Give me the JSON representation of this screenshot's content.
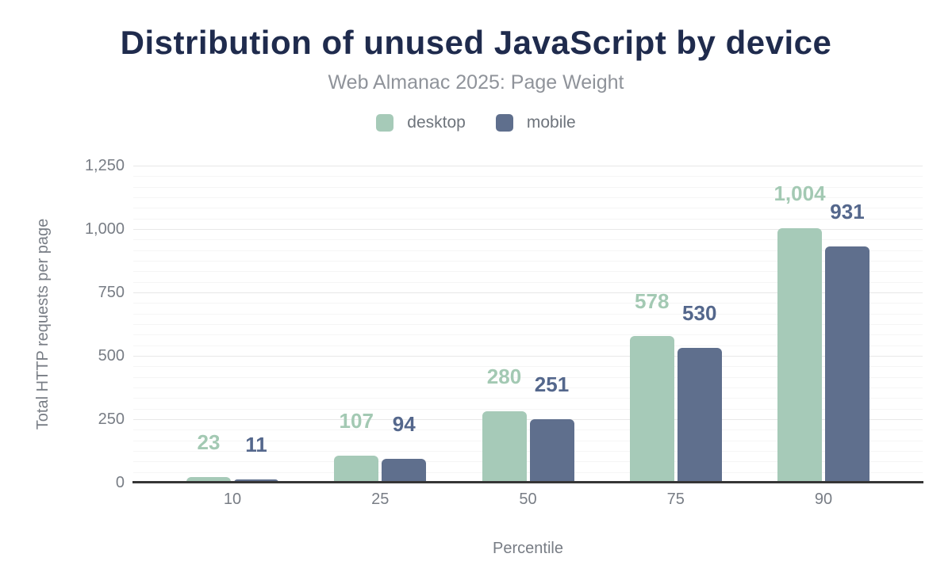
{
  "chart_data": {
    "type": "bar",
    "title": "Distribution of unused JavaScript by device",
    "subtitle": "Web Almanac 2025: Page Weight",
    "xlabel": "Percentile",
    "ylabel": "Total HTTP requests per page",
    "categories": [
      "10",
      "25",
      "50",
      "75",
      "90"
    ],
    "series": [
      {
        "name": "desktop",
        "color": "#a6cab8",
        "label_color": "#a3c9b3",
        "values": [
          23,
          107,
          280,
          578,
          1004
        ],
        "labels": [
          "23",
          "107",
          "280",
          "578",
          "1,004"
        ]
      },
      {
        "name": "mobile",
        "color": "#5f6f8d",
        "label_color": "#54678c",
        "values": [
          11,
          94,
          251,
          530,
          931
        ],
        "labels": [
          "11",
          "94",
          "251",
          "530",
          "931"
        ]
      }
    ],
    "ylim": [
      0,
      1250
    ],
    "ytick_step": 250,
    "ytick_labels": [
      "0",
      "250",
      "500",
      "750",
      "1,000",
      "1,250"
    ],
    "minor_divisions_per_major": 6,
    "grid": "on",
    "legend_position": "top"
  },
  "colors": {
    "title": "#1f2b4d",
    "subtitle": "#8f939a",
    "tick_text": "#787d85",
    "legend_text": "#6e747c",
    "axis_line": "#363636",
    "grid_major": "#e8e8e8",
    "grid_minor": "#f5f5f5",
    "background": "#ffffff"
  }
}
